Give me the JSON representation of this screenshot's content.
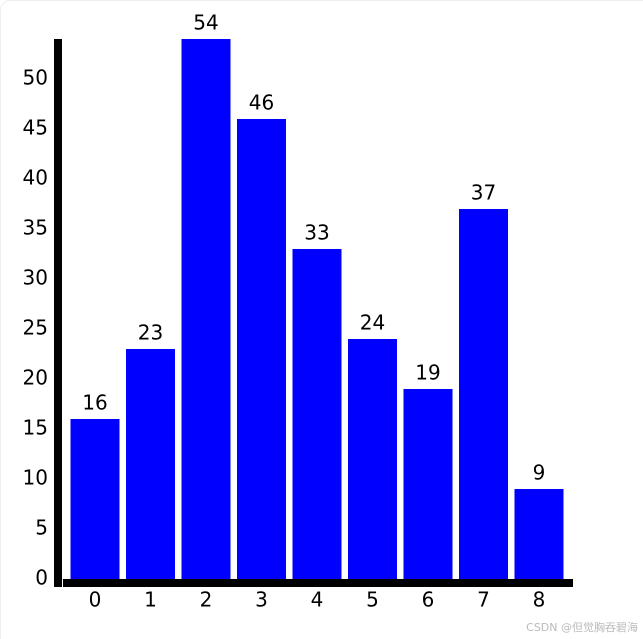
{
  "chart_data": {
    "type": "bar",
    "categories": [
      "0",
      "1",
      "2",
      "3",
      "4",
      "5",
      "6",
      "7",
      "8"
    ],
    "values": [
      16,
      23,
      54,
      46,
      33,
      24,
      19,
      37,
      9
    ],
    "color": "#0000ff",
    "ylim": [
      0,
      54
    ],
    "yticks": [
      0,
      5,
      10,
      15,
      20,
      25,
      30,
      35,
      40,
      45,
      50
    ],
    "data_labels": true,
    "watermark": "CSDN @但觉胸吞碧海"
  }
}
